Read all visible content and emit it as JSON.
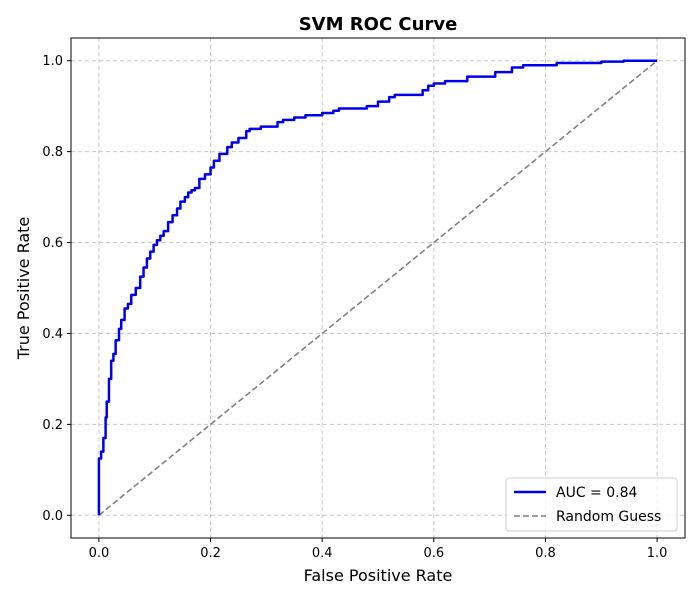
{
  "chart_data": {
    "type": "line",
    "title": "SVM ROC Curve",
    "xlabel": "False Positive Rate",
    "ylabel": "True Positive Rate",
    "xlim": [
      -0.05,
      1.05
    ],
    "ylim": [
      -0.05,
      1.05
    ],
    "x_ticks": [
      0.0,
      0.2,
      0.4,
      0.6,
      0.8,
      1.0
    ],
    "y_ticks": [
      0.0,
      0.2,
      0.4,
      0.6,
      0.8,
      1.0
    ],
    "x_tick_labels": [
      "0.0",
      "0.2",
      "0.4",
      "0.6",
      "0.8",
      "1.0"
    ],
    "y_tick_labels": [
      "0.0",
      "0.2",
      "0.4",
      "0.6",
      "0.8",
      "1.0"
    ],
    "grid": true,
    "legend_position": "lower-right",
    "series": [
      {
        "name": "AUC = 0.84",
        "color": "#0000ee",
        "style": "solid",
        "x": [
          0.0,
          0.0,
          0.0,
          0.0,
          0.004,
          0.004,
          0.008,
          0.008,
          0.012,
          0.012,
          0.014,
          0.014,
          0.018,
          0.018,
          0.022,
          0.022,
          0.026,
          0.026,
          0.03,
          0.03,
          0.036,
          0.036,
          0.04,
          0.04,
          0.046,
          0.046,
          0.052,
          0.052,
          0.058,
          0.058,
          0.066,
          0.066,
          0.074,
          0.074,
          0.08,
          0.08,
          0.086,
          0.086,
          0.092,
          0.092,
          0.098,
          0.098,
          0.104,
          0.104,
          0.11,
          0.11,
          0.116,
          0.116,
          0.124,
          0.124,
          0.132,
          0.132,
          0.14,
          0.14,
          0.146,
          0.146,
          0.154,
          0.154,
          0.16,
          0.16,
          0.166,
          0.166,
          0.172,
          0.172,
          0.18,
          0.18,
          0.19,
          0.19,
          0.2,
          0.2,
          0.206,
          0.206,
          0.216,
          0.216,
          0.23,
          0.23,
          0.238,
          0.238,
          0.25,
          0.25,
          0.264,
          0.264,
          0.27,
          0.27,
          0.29,
          0.29,
          0.32,
          0.32,
          0.33,
          0.33,
          0.35,
          0.35,
          0.37,
          0.37,
          0.4,
          0.4,
          0.42,
          0.42,
          0.43,
          0.43,
          0.48,
          0.48,
          0.5,
          0.5,
          0.52,
          0.52,
          0.53,
          0.53,
          0.58,
          0.58,
          0.59,
          0.59,
          0.6,
          0.6,
          0.62,
          0.62,
          0.66,
          0.66,
          0.71,
          0.71,
          0.74,
          0.74,
          0.76,
          0.76,
          0.82,
          0.82,
          0.9,
          0.9,
          0.94,
          0.94,
          1.0
        ],
        "y": [
          0.0,
          0.02,
          0.07,
          0.125,
          0.125,
          0.14,
          0.14,
          0.17,
          0.17,
          0.215,
          0.215,
          0.25,
          0.25,
          0.3,
          0.3,
          0.34,
          0.34,
          0.355,
          0.355,
          0.385,
          0.385,
          0.41,
          0.41,
          0.43,
          0.43,
          0.455,
          0.455,
          0.465,
          0.465,
          0.485,
          0.485,
          0.5,
          0.5,
          0.525,
          0.525,
          0.545,
          0.545,
          0.565,
          0.565,
          0.58,
          0.58,
          0.595,
          0.595,
          0.605,
          0.605,
          0.615,
          0.615,
          0.625,
          0.625,
          0.645,
          0.645,
          0.66,
          0.66,
          0.675,
          0.675,
          0.69,
          0.69,
          0.7,
          0.7,
          0.71,
          0.71,
          0.715,
          0.715,
          0.72,
          0.72,
          0.74,
          0.74,
          0.75,
          0.75,
          0.765,
          0.765,
          0.78,
          0.78,
          0.795,
          0.795,
          0.81,
          0.81,
          0.82,
          0.82,
          0.83,
          0.83,
          0.845,
          0.845,
          0.85,
          0.85,
          0.855,
          0.855,
          0.865,
          0.865,
          0.87,
          0.87,
          0.875,
          0.875,
          0.88,
          0.88,
          0.885,
          0.885,
          0.89,
          0.89,
          0.895,
          0.895,
          0.9,
          0.9,
          0.91,
          0.91,
          0.92,
          0.92,
          0.925,
          0.925,
          0.935,
          0.935,
          0.945,
          0.945,
          0.95,
          0.95,
          0.955,
          0.955,
          0.965,
          0.965,
          0.975,
          0.975,
          0.985,
          0.985,
          0.99,
          0.99,
          0.995,
          0.995,
          0.998,
          0.998,
          1.0,
          1.0
        ]
      },
      {
        "name": "Random Guess",
        "color": "#808080",
        "style": "dashed",
        "x": [
          0.0,
          1.0
        ],
        "y": [
          0.0,
          1.0
        ]
      }
    ]
  }
}
